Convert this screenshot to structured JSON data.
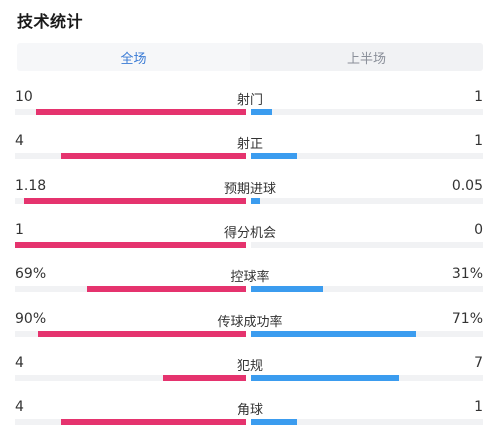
{
  "page": {
    "title": "技术统计"
  },
  "tabs": [
    {
      "label": "全场",
      "active": true
    },
    {
      "label": "上半场",
      "active": false
    }
  ],
  "colors": {
    "home": "#e5336e",
    "away": "#3b9cef",
    "tab_active_text": "#3a7bd5"
  },
  "stats": [
    {
      "label": "射门",
      "home": "10",
      "away": "1",
      "home_fraction": 0.91,
      "away_fraction": 0.09
    },
    {
      "label": "射正",
      "home": "4",
      "away": "1",
      "home_fraction": 0.8,
      "away_fraction": 0.2
    },
    {
      "label": "预期进球",
      "home": "1.18",
      "away": "0.05",
      "home_fraction": 0.96,
      "away_fraction": 0.04
    },
    {
      "label": "得分机会",
      "home": "1",
      "away": "0",
      "home_fraction": 1.0,
      "away_fraction": 0.0
    },
    {
      "label": "控球率",
      "home": "69%",
      "away": "31%",
      "home_fraction": 0.69,
      "away_fraction": 0.31
    },
    {
      "label": "传球成功率",
      "home": "90%",
      "away": "71%",
      "home_fraction": 0.9,
      "away_fraction": 0.71
    },
    {
      "label": "犯规",
      "home": "4",
      "away": "7",
      "home_fraction": 0.36,
      "away_fraction": 0.64
    },
    {
      "label": "角球",
      "home": "4",
      "away": "1",
      "home_fraction": 0.8,
      "away_fraction": 0.2
    }
  ]
}
